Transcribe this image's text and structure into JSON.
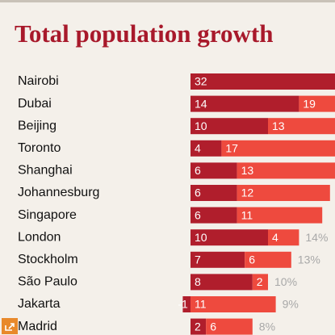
{
  "chart_data": {
    "type": "stacked-bar",
    "title": "Total population growth",
    "categories": [
      "Nairobi",
      "Dubai",
      "Beijing",
      "Toronto",
      "Shanghai",
      "Johannesburg",
      "Singapore",
      "London",
      "Stockholm",
      "São Paulo",
      "Jakarta",
      "Madrid"
    ],
    "series": [
      {
        "color": "#b01e2c",
        "values": [
          32,
          14,
          10,
          4,
          6,
          6,
          6,
          10,
          7,
          8,
          -1,
          2
        ]
      },
      {
        "color": "#ee4a3e",
        "values": [
          null,
          19,
          13,
          17,
          13,
          12,
          11,
          4,
          6,
          2,
          11,
          6
        ]
      }
    ],
    "totals": {
      "values": [
        null,
        null,
        null,
        null,
        null,
        null,
        null,
        14,
        13,
        10,
        9,
        8
      ],
      "value_labels": [
        null,
        null,
        null,
        null,
        null,
        null,
        null,
        "14%",
        "13%",
        "10%",
        "9%",
        "8%"
      ]
    }
  }
}
